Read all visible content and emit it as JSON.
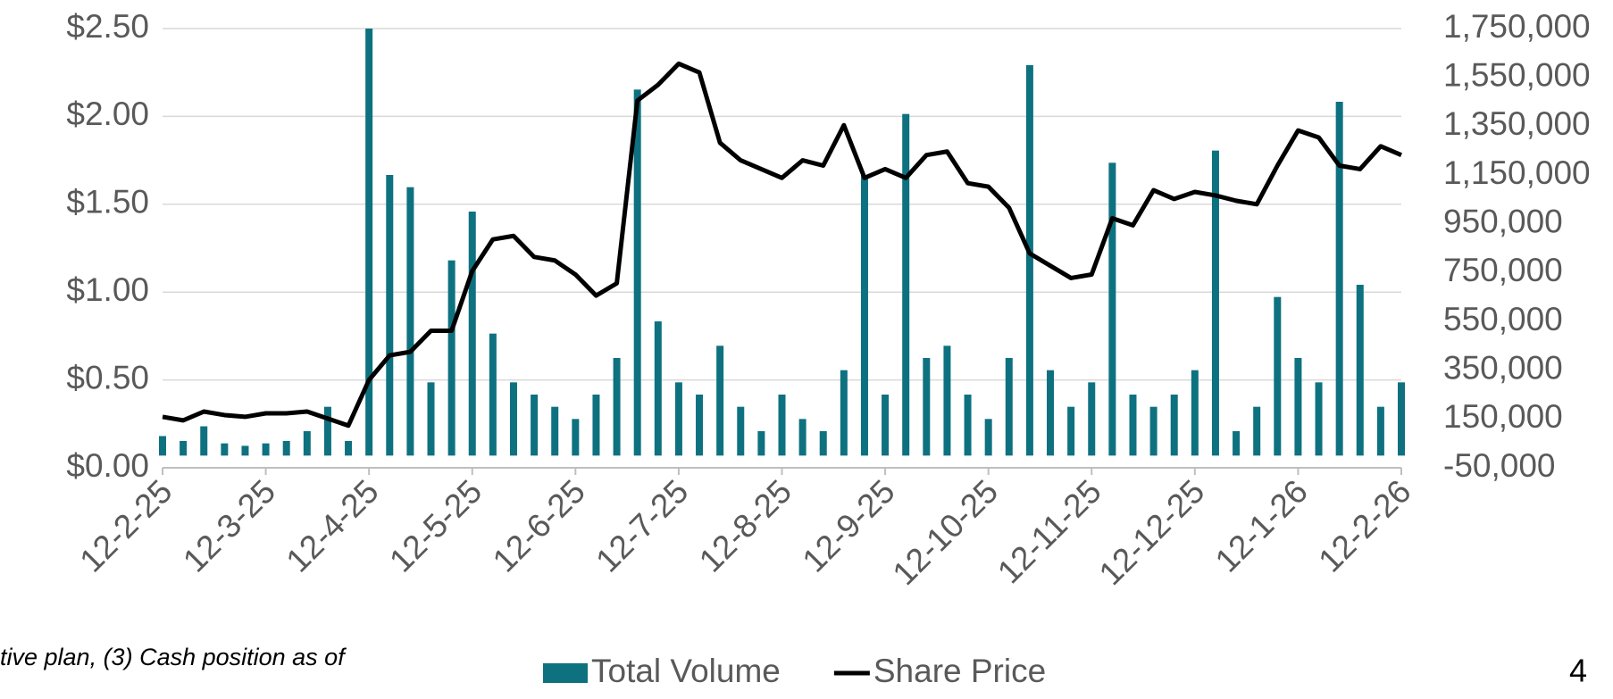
{
  "chart_data": {
    "type": "bar_line",
    "categories": [
      "12-2-25",
      null,
      null,
      null,
      null,
      "12-3-25",
      null,
      null,
      null,
      null,
      "12-4-25",
      null,
      null,
      null,
      null,
      "12-5-25",
      null,
      null,
      null,
      null,
      "12-6-25",
      null,
      null,
      null,
      null,
      "12-7-25",
      null,
      null,
      null,
      null,
      "12-8-25",
      null,
      null,
      null,
      null,
      "12-9-25",
      null,
      null,
      null,
      null,
      "12-10-25",
      null,
      null,
      null,
      null,
      "12-11-25",
      null,
      null,
      null,
      null,
      "12-12-25",
      null,
      null,
      null,
      null,
      "12-1-26",
      null,
      null,
      null,
      null,
      "12-2-26"
    ],
    "series": [
      {
        "name": "Total Volume",
        "type": "bar",
        "axis": "y2",
        "color": "#0e7180",
        "values": [
          80000,
          60000,
          120000,
          50000,
          40000,
          50000,
          60000,
          100000,
          200000,
          60000,
          1750000,
          1150000,
          1100000,
          300000,
          800000,
          1000000,
          500000,
          300000,
          250000,
          200000,
          150000,
          250000,
          400000,
          1500000,
          550000,
          300000,
          250000,
          450000,
          200000,
          100000,
          250000,
          150000,
          100000,
          350000,
          1150000,
          250000,
          1400000,
          400000,
          450000,
          250000,
          150000,
          400000,
          1600000,
          350000,
          200000,
          300000,
          1200000,
          250000,
          200000,
          250000,
          350000,
          1250000,
          100000,
          200000,
          650000,
          400000,
          300000,
          1450000,
          700000,
          200000,
          300000
        ]
      },
      {
        "name": "Share Price",
        "type": "line",
        "axis": "y",
        "color": "#000000",
        "values": [
          0.29,
          0.27,
          0.32,
          0.3,
          0.29,
          0.31,
          0.31,
          0.32,
          0.28,
          0.24,
          0.5,
          0.64,
          0.66,
          0.78,
          0.78,
          1.12,
          1.3,
          1.32,
          1.2,
          1.18,
          1.1,
          0.98,
          1.05,
          2.09,
          2.18,
          2.3,
          2.25,
          1.85,
          1.75,
          1.7,
          1.65,
          1.75,
          1.72,
          1.95,
          1.65,
          1.7,
          1.65,
          1.78,
          1.8,
          1.62,
          1.6,
          1.48,
          1.22,
          1.15,
          1.08,
          1.1,
          1.42,
          1.38,
          1.58,
          1.53,
          1.57,
          1.55,
          1.52,
          1.5,
          1.72,
          1.92,
          1.88,
          1.72,
          1.7,
          1.83,
          1.78
        ]
      }
    ],
    "ylim": [
      0,
      2.5
    ],
    "yticks": [
      {
        "value": 0,
        "label": "$0.00"
      },
      {
        "value": 0.5,
        "label": "$0.50"
      },
      {
        "value": 1,
        "label": "$1.00"
      },
      {
        "value": 1.5,
        "label": "$1.50"
      },
      {
        "value": 2,
        "label": "$2.00"
      },
      {
        "value": 2.5,
        "label": "$2.50"
      }
    ],
    "y2lim": [
      -50000,
      1750000
    ],
    "y2ticks": [
      {
        "value": -50000,
        "label": "-50,000"
      },
      {
        "value": 150000,
        "label": "150,000"
      },
      {
        "value": 350000,
        "label": "350,000"
      },
      {
        "value": 550000,
        "label": "550,000"
      },
      {
        "value": 750000,
        "label": "750,000"
      },
      {
        "value": 950000,
        "label": "950,000"
      },
      {
        "value": 1150000,
        "label": "1,150,000"
      },
      {
        "value": 1350000,
        "label": "1,350,000"
      },
      {
        "value": 1550000,
        "label": "1,550,000"
      },
      {
        "value": 1750000,
        "label": "1,750,000"
      }
    ],
    "grid": true,
    "legend": "bottom"
  },
  "footnote": "tive plan, (3) Cash position as of",
  "page_number": "4"
}
